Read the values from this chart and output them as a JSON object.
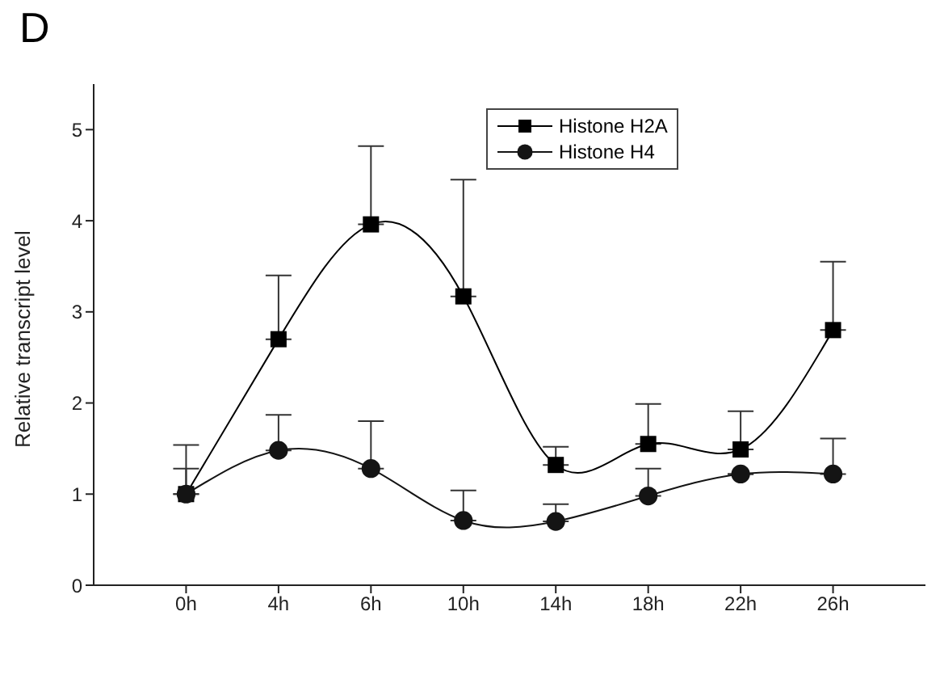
{
  "chart_data": {
    "type": "line",
    "title": "D",
    "ylabel": "Relative transcript level",
    "categories": [
      "0h",
      "4h",
      "6h",
      "10h",
      "14h",
      "18h",
      "22h",
      "26h"
    ],
    "ylim": [
      0,
      5.5
    ],
    "yticks": [
      0,
      1,
      2,
      3,
      4,
      5
    ],
    "grid": false,
    "legend": "top right",
    "line_style": "solid",
    "series": [
      {
        "name": "Histone H2A",
        "color": "#000000",
        "marker": "square",
        "values": [
          1.0,
          2.7,
          3.96,
          3.17,
          1.32,
          1.55,
          1.49,
          2.8
        ],
        "errors": [
          [
            1.0,
            1.54
          ],
          [
            2.7,
            3.4
          ],
          [
            3.96,
            4.82
          ],
          [
            3.17,
            4.45
          ],
          [
            1.32,
            1.52
          ],
          [
            1.55,
            1.99
          ],
          [
            1.49,
            1.91
          ],
          [
            2.8,
            3.55
          ]
        ]
      },
      {
        "name": "Histone H4",
        "color": "#141414",
        "marker": "circle",
        "values": [
          1.0,
          1.48,
          1.28,
          0.71,
          0.7,
          0.98,
          1.22,
          1.22
        ],
        "errors": [
          [
            1.0,
            1.28
          ],
          [
            1.48,
            1.87
          ],
          [
            1.28,
            1.8
          ],
          [
            0.71,
            1.04
          ],
          [
            0.7,
            0.89
          ],
          [
            0.98,
            1.28
          ],
          null,
          [
            1.22,
            1.61
          ]
        ]
      }
    ]
  }
}
